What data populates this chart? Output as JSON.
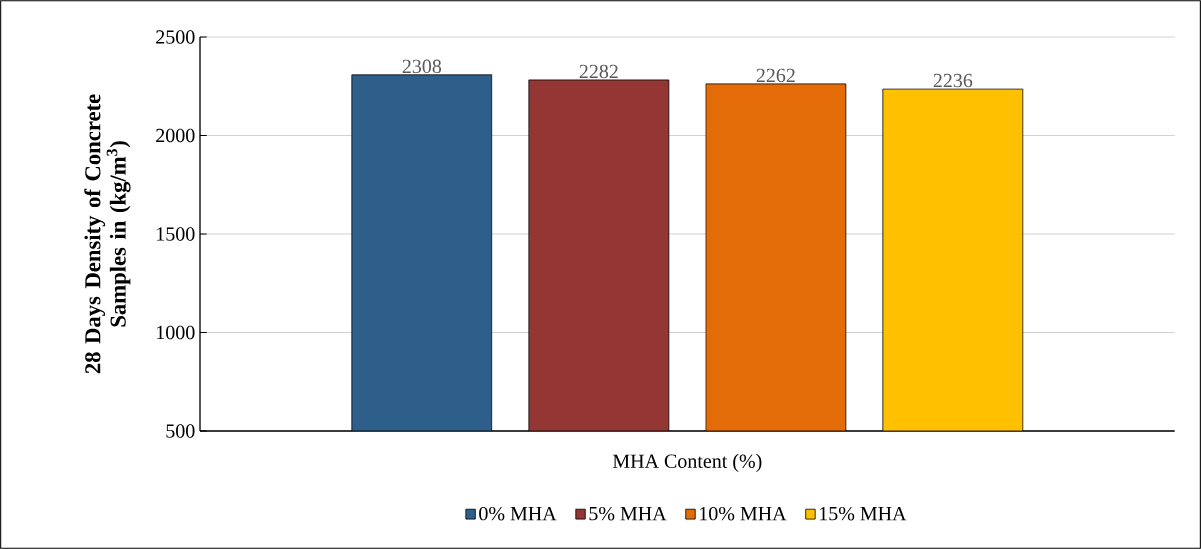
{
  "chart_data": {
    "type": "bar",
    "xlabel": "MHA Content (%)",
    "ylabel": "28 Days Density of Concrete Samples in (kg/m$^{3}$)",
    "categories": [
      null
    ],
    "series": [
      {
        "name": "0% MHA",
        "color": "#2e5f8a",
        "values": [
          2308
        ]
      },
      {
        "name": "5% MHA",
        "color": "#943634",
        "values": [
          2282
        ]
      },
      {
        "name": "10% MHA",
        "color": "#e36c09",
        "values": [
          2262
        ]
      },
      {
        "name": "15% MHA",
        "color": "#ffc000",
        "values": [
          2236
        ]
      }
    ],
    "ylim": [
      500,
      2500
    ],
    "yticks": [
      500,
      1000,
      1500,
      2000,
      2500
    ],
    "grid": "y",
    "legend": "bottom",
    "data_labels": true
  }
}
